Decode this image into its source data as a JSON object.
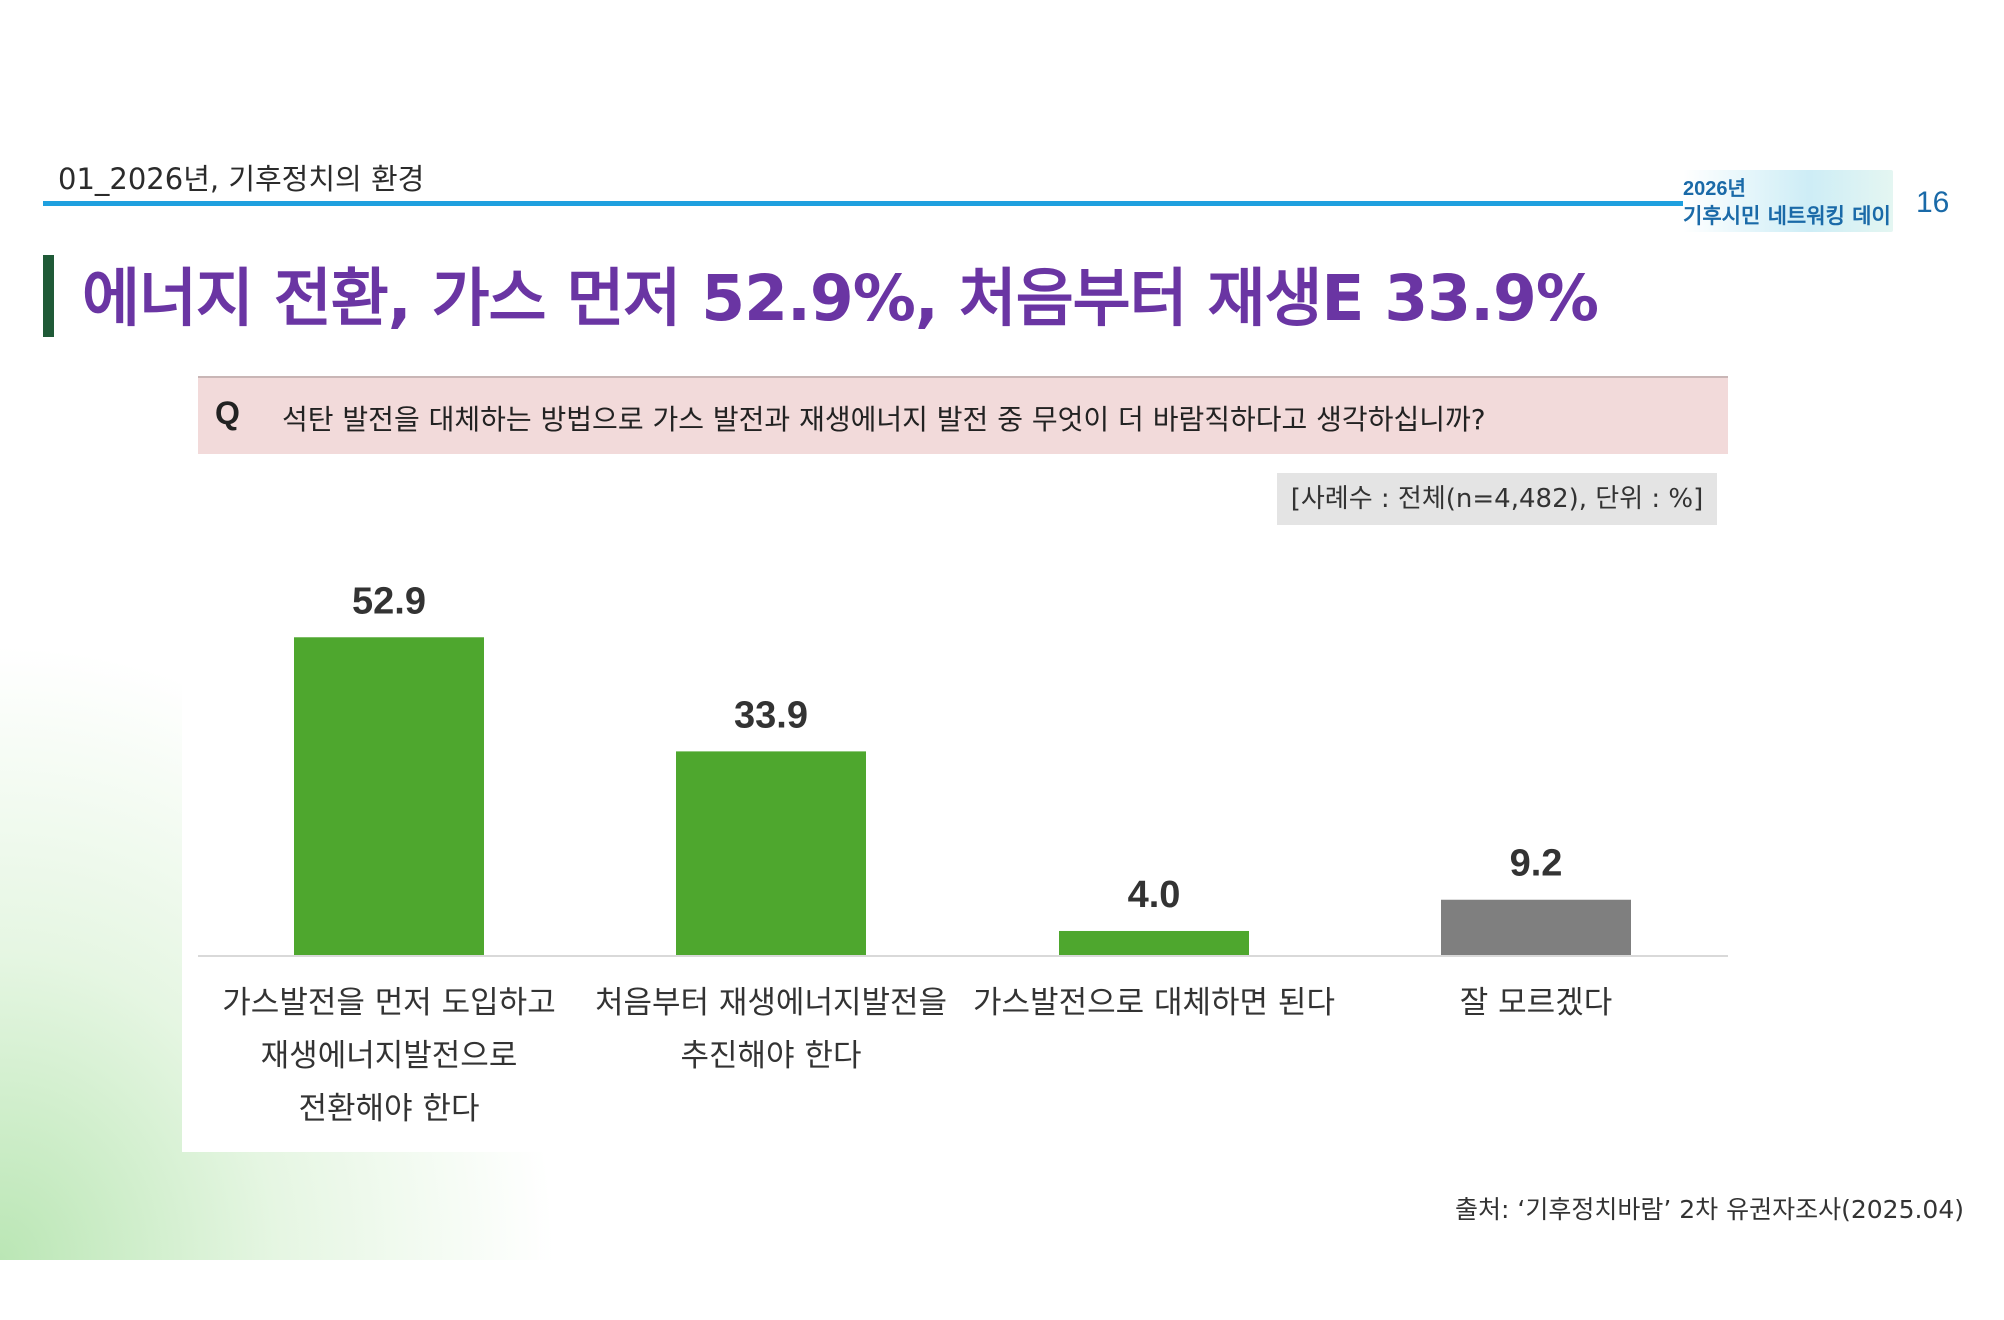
{
  "header": {
    "section_label": "01_2026년, 기후정치의 환경",
    "event_year": "2026년",
    "event_name": "기후시민 네트워킹 데이",
    "page_number": "16",
    "accent_color": "#1fa0df"
  },
  "headline": {
    "text": "에너지 전환, 가스 먼저 52.9%, 처음부터 재생E 33.9%",
    "color": "#6a35a3"
  },
  "question": {
    "mark": "Q",
    "text": "석탄 발전을 대체하는 방법으로 가스 발전과 재생에너지 발전 중 무엇이 더 바람직하다고 생각하십니까?"
  },
  "sample_note": "[사례수 : 전체(n=4,482), 단위 : %]",
  "chart_data": {
    "type": "bar",
    "categories": [
      "가스발전을 먼저 도입하고 재생에너지발전으로 전환해야 한다",
      "처음부터 재생에너지발전을 추진해야 한다",
      "가스발전으로 대체하면 된다",
      "잘 모르겠다"
    ],
    "category_lines": [
      [
        "가스발전을 먼저 도입하고",
        "재생에너지발전으로",
        "전환해야 한다"
      ],
      [
        "처음부터 재생에너지발전을",
        "추진해야 한다"
      ],
      [
        "가스발전으로 대체하면 된다"
      ],
      [
        "잘 모르겠다"
      ]
    ],
    "values": [
      52.9,
      33.9,
      4.0,
      9.2
    ],
    "value_labels": [
      "52.9",
      "33.9",
      "4.0",
      "9.2"
    ],
    "colors": [
      "#4ea72e",
      "#4ea72e",
      "#4ea72e",
      "#7f7f7f"
    ],
    "unit": "%",
    "ylim": [
      0,
      60
    ],
    "grid": false,
    "title": "",
    "xlabel": "",
    "ylabel": ""
  },
  "source": "출처: ‘기후정치바람’ 2차 유권자조사(2025.04)"
}
